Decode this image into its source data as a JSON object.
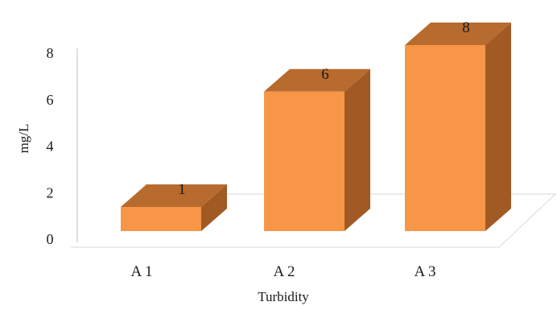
{
  "chart_data": {
    "type": "bar",
    "style": "3d-column",
    "categories": [
      "A 1",
      "A 2",
      "A 3"
    ],
    "values": [
      1,
      6,
      8
    ],
    "data_labels": [
      "1",
      "6",
      "8"
    ],
    "title": "",
    "xlabel": "Turbidity",
    "ylabel": "mg/L",
    "ylim": [
      0,
      8
    ],
    "yticks": [
      "0",
      "2",
      "4",
      "6",
      "8"
    ],
    "grid": false,
    "legend": "none",
    "colors": {
      "front": "#f79646",
      "top": "#b86b2e",
      "side": "#a15a24",
      "axis": "#bfbfbf"
    }
  }
}
